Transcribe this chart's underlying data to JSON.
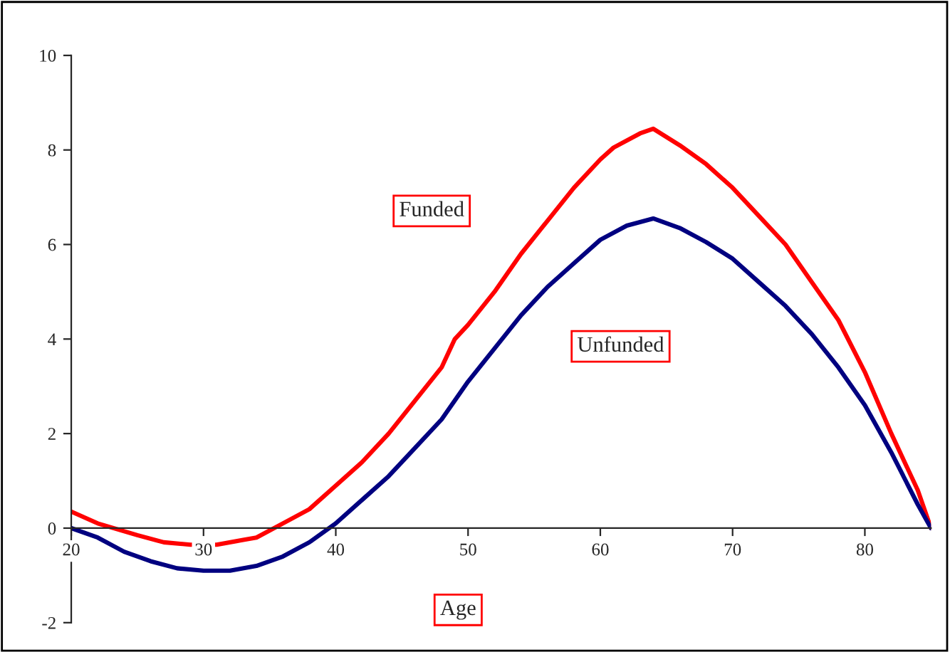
{
  "chart_data": {
    "type": "line",
    "xlabel": "Age",
    "xlim": [
      20,
      85
    ],
    "ylim": [
      -2,
      10
    ],
    "xticks": [
      20,
      30,
      40,
      50,
      60,
      70,
      80
    ],
    "yticks": [
      -2,
      0,
      2,
      4,
      6,
      8,
      10
    ],
    "grid": false,
    "legend": false,
    "marker": "none",
    "line_style": "solid",
    "series": [
      {
        "name": "Funded",
        "color": "#ff0000",
        "x": [
          20,
          22,
          25,
          27,
          29,
          31,
          33,
          34,
          36,
          38,
          40,
          42,
          44,
          46,
          48,
          49,
          50,
          52,
          54,
          56,
          58,
          60,
          61,
          63,
          64,
          66,
          68,
          70,
          72,
          74,
          76,
          78,
          80,
          82,
          84,
          85
        ],
        "values": [
          0.35,
          0.1,
          -0.15,
          -0.3,
          -0.35,
          -0.35,
          -0.25,
          -0.2,
          0.1,
          0.4,
          0.9,
          1.4,
          2.0,
          2.7,
          3.4,
          4.0,
          4.3,
          5.0,
          5.8,
          6.5,
          7.2,
          7.8,
          8.05,
          8.35,
          8.45,
          8.1,
          7.7,
          7.2,
          6.6,
          6.0,
          5.2,
          4.4,
          3.3,
          2.0,
          0.8,
          0
        ]
      },
      {
        "name": "Unfunded",
        "color": "#000080",
        "x": [
          20,
          22,
          24,
          26,
          28,
          30,
          32,
          34,
          36,
          38,
          40,
          42,
          44,
          46,
          48,
          50,
          52,
          54,
          56,
          58,
          60,
          62,
          64,
          66,
          68,
          70,
          72,
          74,
          76,
          78,
          80,
          82,
          84,
          85
        ],
        "values": [
          0,
          -0.2,
          -0.5,
          -0.7,
          -0.85,
          -0.9,
          -0.9,
          -0.8,
          -0.6,
          -0.3,
          0.1,
          0.6,
          1.1,
          1.7,
          2.3,
          3.1,
          3.8,
          4.5,
          5.1,
          5.6,
          6.1,
          6.4,
          6.55,
          6.35,
          6.05,
          5.7,
          5.2,
          4.7,
          4.1,
          3.4,
          2.6,
          1.6,
          0.5,
          0
        ]
      }
    ]
  }
}
